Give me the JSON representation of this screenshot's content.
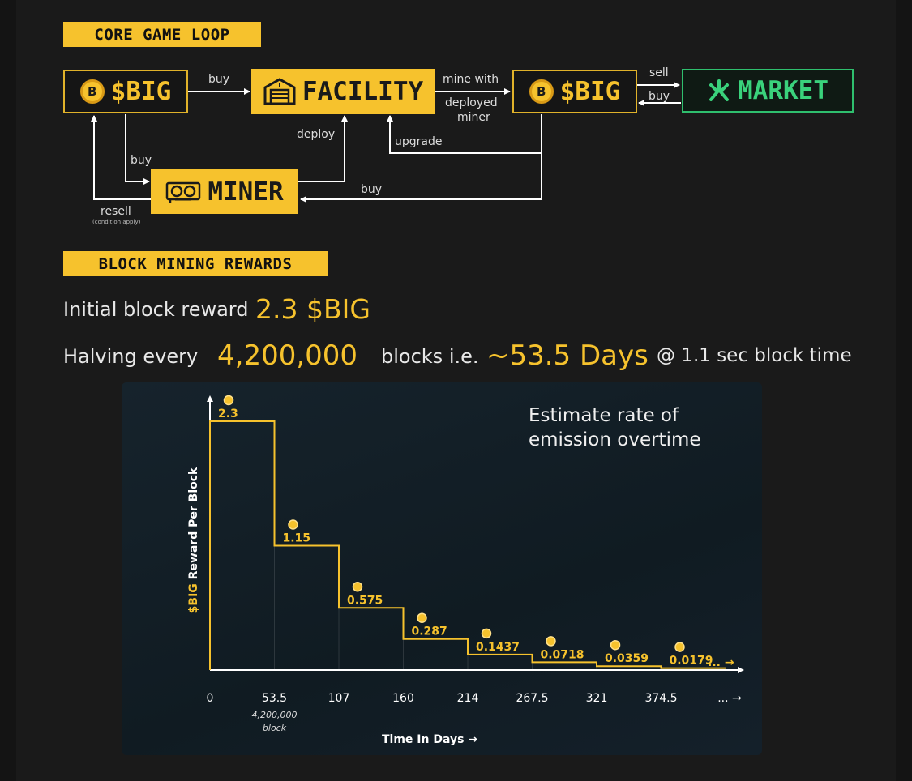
{
  "sections": {
    "loop_title": "CORE GAME LOOP",
    "rewards_title": "BLOCK MINING REWARDS"
  },
  "colors": {
    "accent": "#f6c22d",
    "market_green": "#3ad27c",
    "background": "#1a1a1a",
    "chart_bg": "#101b22"
  },
  "loop": {
    "big_left": {
      "label": "$BIG",
      "icon": "coin-b-icon"
    },
    "facility": {
      "label": "FACILITY",
      "icon": "warehouse-icon"
    },
    "big_right": {
      "label": "$BIG",
      "icon": "coin-b-icon"
    },
    "market": {
      "label": "MARKET",
      "icon": "market-logo-icon"
    },
    "miner": {
      "label": "MINER",
      "icon": "gpu-card-icon"
    },
    "edges": {
      "buy_facility": "buy",
      "mine_with_1": "mine with",
      "mine_with_2": "deployed",
      "mine_with_3": "miner",
      "sell": "sell",
      "buy_market": "buy",
      "deploy": "deploy",
      "upgrade": "upgrade",
      "buy_miner": "buy",
      "buy_miner_right": "buy",
      "resell": "resell",
      "resell_note": "(condition apply)"
    }
  },
  "rewards": {
    "initial_label": "Initial block reward",
    "initial_value": "2.3 $BIG",
    "halving_label": "Halving every",
    "halving_value": "4,200,000",
    "blocks_label": "blocks i.e.",
    "days_value": "~53.5 Days",
    "block_time": "@ 1.1 sec block time"
  },
  "chart_data": {
    "type": "line",
    "title": "Estimate rate of emission overtime",
    "title_lines": [
      "Estimate rate of",
      "emission overtime"
    ],
    "ylabel_accent": "$BIG",
    "ylabel_rest": " Reward Per Block",
    "xlabel": "Time In Days",
    "step": true,
    "x": [
      0,
      53.5,
      107,
      160,
      214,
      267.5,
      321,
      374.5
    ],
    "x_tick_labels": [
      "0",
      "53.5",
      "107",
      "160",
      "214",
      "267.5",
      "321",
      "374.5",
      "..."
    ],
    "x_annotation_lines": [
      "4,200,000",
      "block"
    ],
    "values": [
      2.3,
      1.15,
      0.575,
      0.287,
      0.1437,
      0.0718,
      0.0359,
      0.0179
    ],
    "value_labels": [
      "2.3",
      "1.15",
      "0.575",
      "0.287",
      "0.1437",
      "0.0718",
      "0.0359",
      "0.0179"
    ],
    "continuation": "...",
    "xlim": [
      0,
      374.5
    ],
    "ylim": [
      0,
      2.3
    ]
  }
}
